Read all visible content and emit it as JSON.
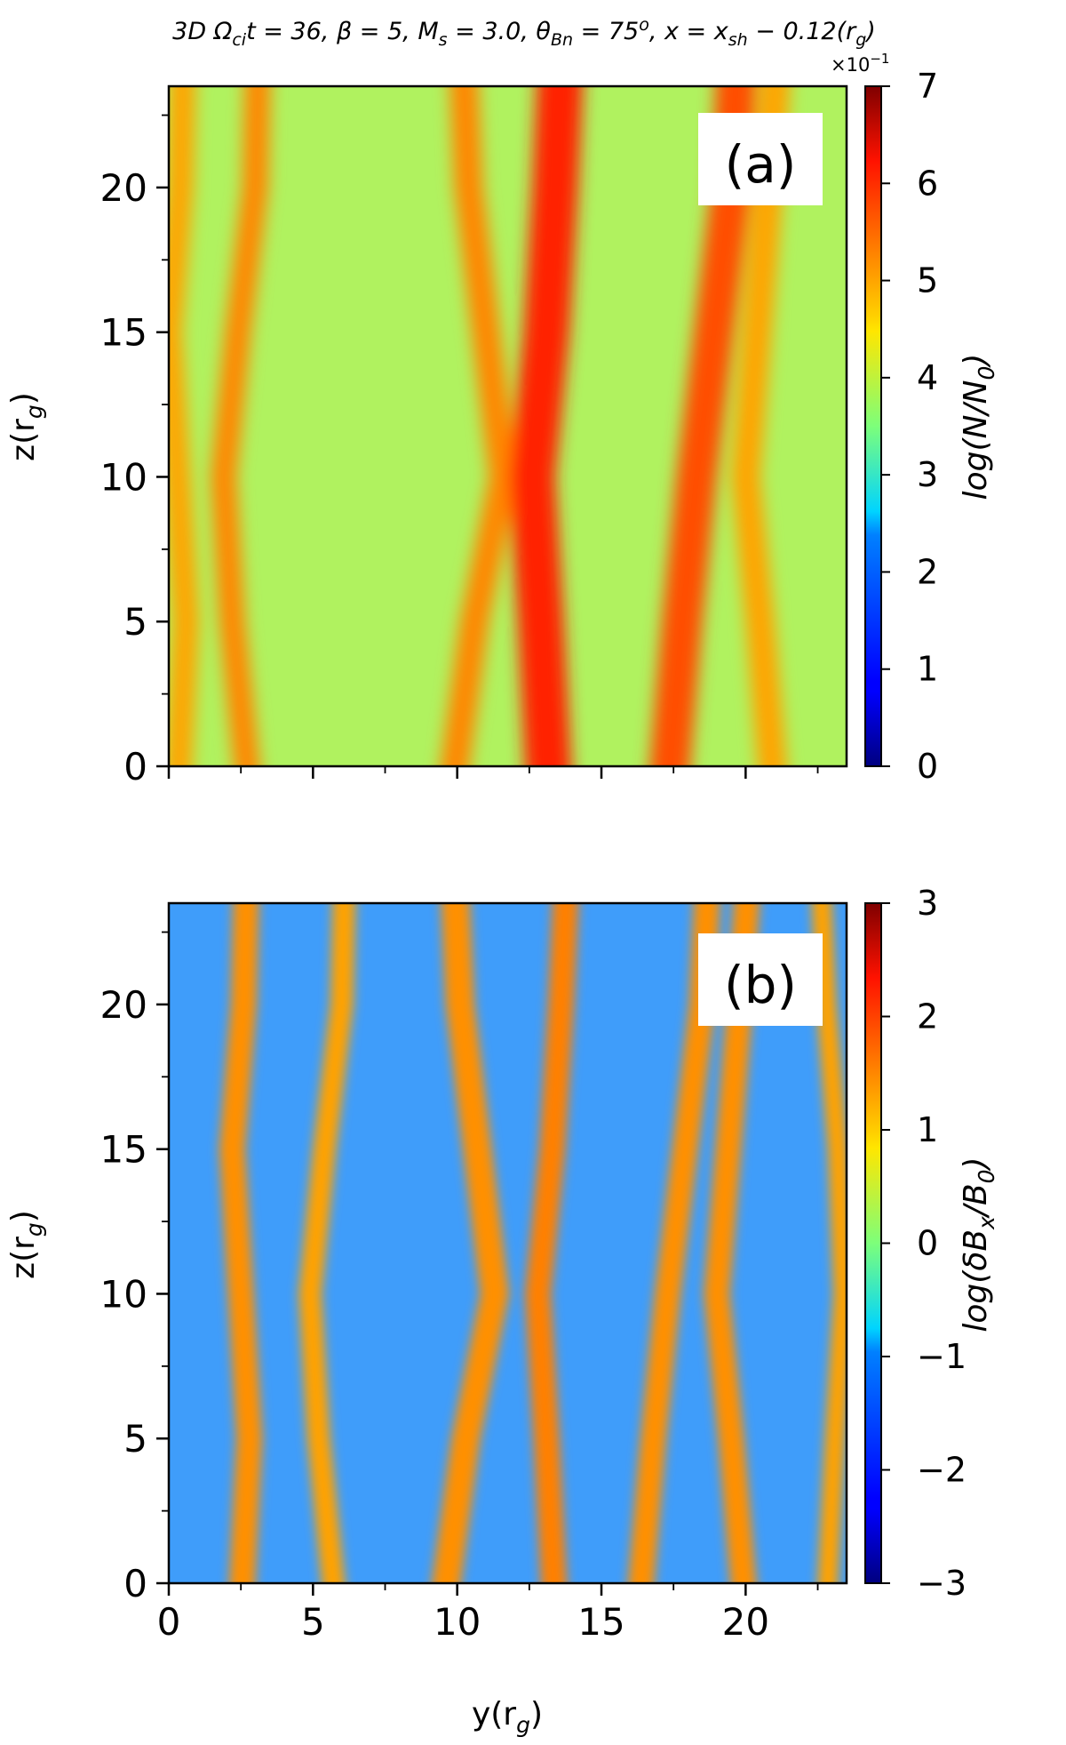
{
  "figure": {
    "suptitle": "3D  Ω",
    "suptitle_parts": {
      "t1": "3D  Ω",
      "t1_sub": "ci",
      "t2": "t = 36, β = 5, M",
      "t2_sub": "s",
      "t3": " = 3.0, θ",
      "t3_sub": "Bn",
      "t4": " = 75",
      "t4_sup": "o",
      "t5": ", x = x",
      "t5_sub": "sh",
      "t6": " − 0.12(r",
      "t6_sub": "g",
      "t7": ")"
    }
  },
  "chart_data": [
    {
      "type": "heatmap",
      "panel_label": "(a)",
      "xlabel": "",
      "ylabel": "z(r_g)",
      "ylabel_parts": {
        "main": "z(r",
        "sub": "g",
        "end": ")"
      },
      "xlim": [
        0,
        23.5
      ],
      "ylim": [
        0,
        23.5
      ],
      "xticks": [
        0,
        5,
        10,
        15,
        20
      ],
      "yticks": [
        0,
        5,
        10,
        15,
        20
      ],
      "yticklabels": [
        "0",
        "5",
        "10",
        "15",
        "20"
      ],
      "colorbar": {
        "label": "log(N/N_0)",
        "label_parts": {
          "main": "log(N/N",
          "sub": "0",
          "end": ")"
        },
        "range": [
          0,
          7
        ],
        "ticks": [
          0,
          1,
          2,
          3,
          4,
          5,
          6,
          7
        ],
        "ticklabels": [
          "0",
          "1",
          "2",
          "3",
          "4",
          "5",
          "6",
          "7"
        ],
        "offset_text": "×10",
        "offset_exp": "−1",
        "colormap": "jet"
      },
      "field_description": "density filaments elongated along z, values mostly 3–6 (×0.1)",
      "structures": [
        {
          "y": 0.3,
          "width": 0.9,
          "value": 5.0
        },
        {
          "y": 2.8,
          "width": 0.9,
          "value": 5.2
        },
        {
          "y": 9.8,
          "width": 1.0,
          "value": 5.2
        },
        {
          "y": 12.8,
          "width": 1.6,
          "value": 5.9
        },
        {
          "y": 17.5,
          "width": 1.4,
          "value": 5.6
        },
        {
          "y": 21.0,
          "width": 1.0,
          "value": 5.0
        }
      ]
    },
    {
      "type": "heatmap",
      "panel_label": "(b)",
      "xlabel": "y(r_g)",
      "xlabel_parts": {
        "main": "y(r",
        "sub": "g",
        "end": ")"
      },
      "ylabel": "z(r_g)",
      "ylabel_parts": {
        "main": "z(r",
        "sub": "g",
        "end": ")"
      },
      "xlim": [
        0,
        23.5
      ],
      "ylim": [
        0,
        23.5
      ],
      "xticks": [
        0,
        5,
        10,
        15,
        20
      ],
      "xticklabels": [
        "0",
        "5",
        "10",
        "15",
        "20"
      ],
      "yticks": [
        0,
        5,
        10,
        15,
        20
      ],
      "yticklabels": [
        "0",
        "5",
        "10",
        "15",
        "20"
      ],
      "colorbar": {
        "label": "log(δB_x/B_0)",
        "label_parts": {
          "main": "log(δB",
          "sub1": "x",
          "mid": "/B",
          "sub2": "0",
          "end": ")"
        },
        "range": [
          -3,
          3
        ],
        "ticks": [
          -3,
          -2,
          -1,
          0,
          1,
          2,
          3
        ],
        "ticklabels": [
          "−3",
          "−2",
          "−1",
          "0",
          "1",
          "2",
          "3"
        ],
        "colormap": "jet"
      },
      "field_description": "magnetic filaments, background ≈ −1.5, bands ≈ +1.4",
      "structures": [
        {
          "y": 2.5,
          "width": 0.9,
          "value": 1.4
        },
        {
          "y": 5.8,
          "width": 0.8,
          "value": 1.3
        },
        {
          "y": 9.5,
          "width": 1.0,
          "value": 1.4
        },
        {
          "y": 13.0,
          "width": 0.9,
          "value": 1.5
        },
        {
          "y": 16.5,
          "width": 0.9,
          "value": 1.4
        },
        {
          "y": 20.0,
          "width": 0.9,
          "value": 1.4
        },
        {
          "y": 22.8,
          "width": 0.7,
          "value": 1.3
        }
      ]
    }
  ]
}
